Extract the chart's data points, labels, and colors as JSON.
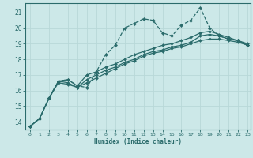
{
  "xlabel": "Humidex (Indice chaleur)",
  "bg_color": "#cce8e8",
  "grid_color": "#b8d8d8",
  "line_color": "#2a6b6b",
  "xlim": [
    -0.5,
    23.3
  ],
  "ylim": [
    13.5,
    21.6
  ],
  "yticks": [
    14,
    15,
    16,
    17,
    18,
    19,
    20,
    21
  ],
  "xticks": [
    0,
    1,
    2,
    3,
    4,
    5,
    6,
    7,
    8,
    9,
    10,
    11,
    12,
    13,
    14,
    15,
    16,
    17,
    18,
    19,
    20,
    21,
    22,
    23
  ],
  "lines": [
    {
      "x": [
        0,
        1,
        2,
        3,
        4,
        5,
        6,
        7,
        8,
        9,
        10,
        11,
        12,
        13,
        14,
        15,
        16,
        17,
        18,
        19,
        20,
        21,
        22,
        23
      ],
      "y": [
        13.7,
        14.2,
        15.5,
        16.6,
        16.7,
        16.3,
        16.2,
        17.2,
        18.3,
        18.9,
        20.0,
        20.3,
        20.6,
        20.5,
        19.7,
        19.5,
        20.2,
        20.5,
        21.3,
        20.0,
        19.5,
        19.3,
        19.2,
        18.9
      ],
      "linestyle": "--",
      "linewidth": 0.9,
      "markersize": 2.2
    },
    {
      "x": [
        0,
        1,
        2,
        3,
        4,
        5,
        6,
        7,
        8,
        9,
        10,
        11,
        12,
        13,
        14,
        15,
        16,
        17,
        18,
        19,
        20,
        21,
        22,
        23
      ],
      "y": [
        13.7,
        14.2,
        15.5,
        16.6,
        16.5,
        16.2,
        16.7,
        17.0,
        17.3,
        17.5,
        17.8,
        18.0,
        18.3,
        18.5,
        18.6,
        18.8,
        18.9,
        19.1,
        19.5,
        19.6,
        19.5,
        19.3,
        19.2,
        18.9
      ],
      "linestyle": "-",
      "linewidth": 0.9,
      "markersize": 2.0
    },
    {
      "x": [
        0,
        1,
        2,
        3,
        4,
        5,
        6,
        7,
        8,
        9,
        10,
        11,
        12,
        13,
        14,
        15,
        16,
        17,
        18,
        19,
        20,
        21,
        22,
        23
      ],
      "y": [
        13.7,
        14.2,
        15.5,
        16.5,
        16.4,
        16.2,
        16.5,
        16.8,
        17.1,
        17.4,
        17.7,
        17.9,
        18.2,
        18.4,
        18.5,
        18.7,
        18.8,
        19.0,
        19.2,
        19.3,
        19.3,
        19.2,
        19.1,
        18.9
      ],
      "linestyle": "-",
      "linewidth": 0.9,
      "markersize": 2.0
    },
    {
      "x": [
        0,
        1,
        2,
        3,
        4,
        5,
        6,
        7,
        8,
        9,
        10,
        11,
        12,
        13,
        14,
        15,
        16,
        17,
        18,
        19,
        20,
        21,
        22,
        23
      ],
      "y": [
        13.7,
        14.2,
        15.5,
        16.6,
        16.7,
        16.3,
        17.0,
        17.2,
        17.5,
        17.7,
        18.0,
        18.3,
        18.5,
        18.7,
        18.9,
        19.0,
        19.2,
        19.4,
        19.7,
        19.8,
        19.6,
        19.4,
        19.2,
        19.0
      ],
      "linestyle": "-",
      "linewidth": 0.9,
      "markersize": 2.0
    }
  ]
}
